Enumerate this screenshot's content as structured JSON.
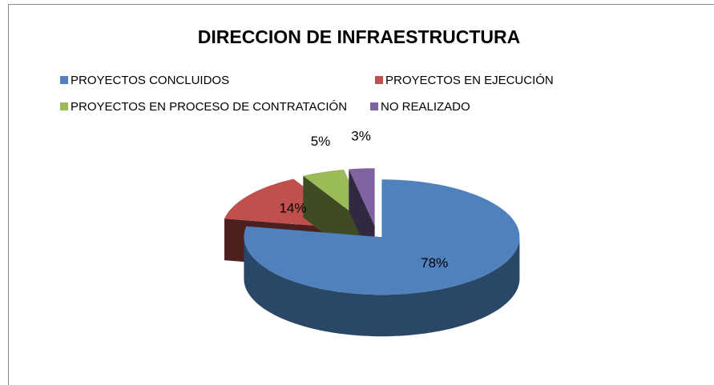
{
  "chart_data": {
    "type": "pie",
    "title": "DIRECCION DE INFRAESTRUCTURA",
    "categories": [
      "PROYECTOS CONCLUIDOS",
      "PROYECTOS EN EJECUCIÓN",
      "PROYECTOS EN PROCESO DE CONTRATACIÓN",
      "NO REALIZADO"
    ],
    "values": [
      78,
      14,
      5,
      3
    ],
    "value_labels": [
      "78%",
      "14%",
      "5%",
      "3%"
    ],
    "colors": [
      "#4f81bd",
      "#c0504d",
      "#9bbb59",
      "#8064a2"
    ],
    "legend": "top"
  }
}
